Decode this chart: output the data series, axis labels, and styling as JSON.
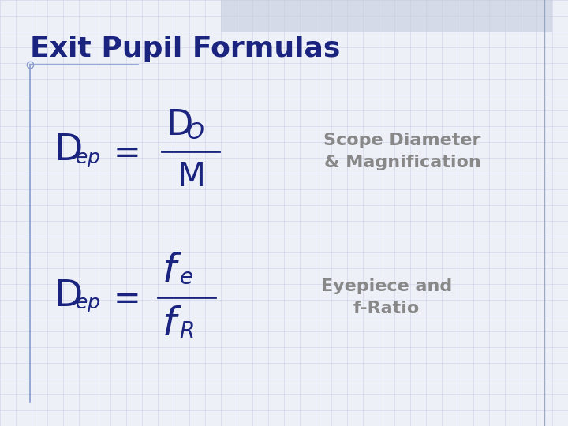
{
  "title": "Exit Pupil Formulas",
  "title_color": "#1a237e",
  "title_fontsize": 26,
  "bg_color": "#eef0f8",
  "grid_color": "#c5cce0",
  "formula_color": "#1a237e",
  "label_color": "#888888",
  "label1_text": "Scope Diameter\n& Magnification",
  "label2_text": "Eyepiece and\nf-Ratio",
  "label_fontsize": 16,
  "border_color": "#8899bb",
  "line_color": "#8899cc",
  "top_bar_color": "#c5cce0"
}
